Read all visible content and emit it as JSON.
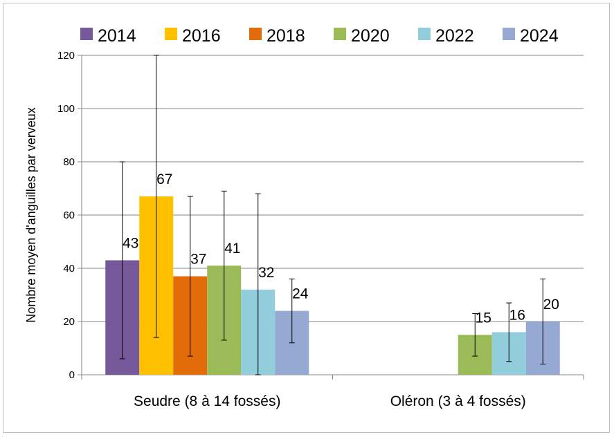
{
  "chart_data": {
    "type": "bar",
    "ylabel": "Nombre moyen d'anguilles par verveux",
    "ylim": [
      0,
      120
    ],
    "yticks": [
      0,
      20,
      40,
      60,
      80,
      100,
      120
    ],
    "grid": true,
    "legend_position": "top",
    "categories": [
      "Seudre (8 à 14 fossés)",
      "Oléron (3 à 4 fossés)"
    ],
    "series": [
      {
        "name": "2014",
        "color": "#76599b",
        "values": [
          43,
          null
        ],
        "err_low": [
          6,
          null
        ],
        "err_high": [
          80,
          null
        ]
      },
      {
        "name": "2016",
        "color": "#ffc000",
        "values": [
          67,
          null
        ],
        "err_low": [
          14,
          null
        ],
        "err_high": [
          120,
          null
        ]
      },
      {
        "name": "2018",
        "color": "#e36c0a",
        "values": [
          37,
          null
        ],
        "err_low": [
          7,
          null
        ],
        "err_high": [
          67,
          null
        ]
      },
      {
        "name": "2020",
        "color": "#9bbb59",
        "values": [
          41,
          15
        ],
        "err_low": [
          13,
          7
        ],
        "err_high": [
          69,
          23
        ]
      },
      {
        "name": "2022",
        "color": "#92cddc",
        "values": [
          32,
          16
        ],
        "err_low": [
          0,
          5
        ],
        "err_high": [
          68,
          27
        ]
      },
      {
        "name": "2024",
        "color": "#95a9d2",
        "values": [
          24,
          20
        ],
        "err_low": [
          12,
          4
        ],
        "err_high": [
          36,
          36
        ]
      }
    ],
    "data_labels": [
      [
        "43",
        null
      ],
      [
        "67",
        null
      ],
      [
        "37",
        null
      ],
      [
        "41",
        "15"
      ],
      [
        "32",
        "16"
      ],
      [
        "24",
        "20"
      ]
    ]
  }
}
